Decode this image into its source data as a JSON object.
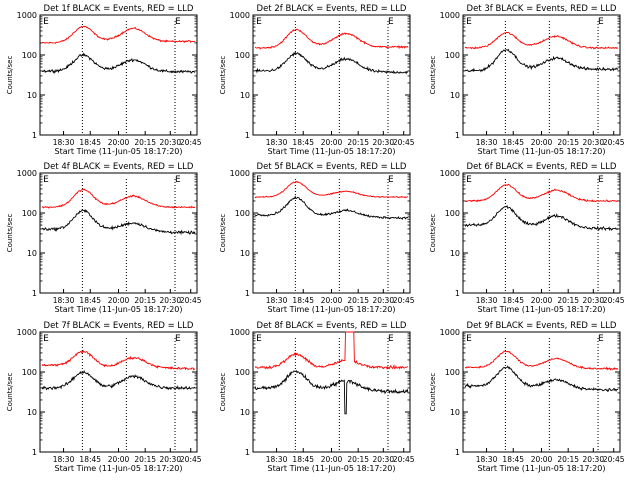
{
  "x_ticks": [
    "18:30",
    "18:45",
    "20:00",
    "20:15",
    "20:30",
    "20:45"
  ],
  "y_ticks": [
    "1",
    "10",
    "100",
    "1000"
  ],
  "ylabel": "Counts/sec",
  "xlabel": "Start Time (11-Jun-05 18:17:20)",
  "marker_label": "E",
  "colors": {
    "events": "#000000",
    "lld": "#ff0000",
    "axes": "#000000"
  },
  "chart_data": [
    {
      "type": "line",
      "title": "Det 1f BLACK = Events, RED = LLD",
      "xlabel": "Start Time (11-Jun-05 18:17:20)",
      "ylabel": "Counts/sec",
      "y_scale": "log",
      "ylim": [
        1,
        1000
      ],
      "x_tick_labels": [
        "18:30",
        "18:45",
        "20:00",
        "20:15",
        "20:30",
        "20:45"
      ],
      "events": {
        "base": 40,
        "peak1": 100,
        "trough": 48,
        "peak2": 80,
        "end": 38,
        "noise": 0.05
      },
      "lld": {
        "base": 200,
        "peak1": 500,
        "trough": 250,
        "peak2": 450,
        "end": 220,
        "noise": 0.03
      }
    },
    {
      "type": "line",
      "title": "Det 2f BLACK = Events, RED = LLD",
      "xlabel": "Start Time (11-Jun-05 18:17:20)",
      "ylabel": "Counts/sec",
      "y_scale": "log",
      "ylim": [
        1,
        1000
      ],
      "x_tick_labels": [
        "18:30",
        "18:45",
        "20:00",
        "20:15",
        "20:30",
        "20:45"
      ],
      "events": {
        "base": 40,
        "peak1": 110,
        "trough": 50,
        "peak2": 85,
        "end": 37,
        "noise": 0.05
      },
      "lld": {
        "base": 150,
        "peak1": 420,
        "trough": 200,
        "peak2": 340,
        "end": 160,
        "noise": 0.03
      }
    },
    {
      "type": "line",
      "title": "Det 3f BLACK = Events, RED = LLD",
      "xlabel": "Start Time (11-Jun-05 18:17:20)",
      "ylabel": "Counts/sec",
      "y_scale": "log",
      "ylim": [
        1,
        1000
      ],
      "x_tick_labels": [
        "18:30",
        "18:45",
        "20:00",
        "20:15",
        "20:30",
        "20:45"
      ],
      "events": {
        "base": 40,
        "peak1": 130,
        "trough": 50,
        "peak2": 80,
        "end": 45,
        "noise": 0.05
      },
      "lld": {
        "base": 150,
        "peak1": 360,
        "trough": 200,
        "peak2": 300,
        "end": 150,
        "noise": 0.03
      }
    },
    {
      "type": "line",
      "title": "Det 4f BLACK = Events, RED = LLD",
      "xlabel": "Start Time (11-Jun-05 18:17:20)",
      "ylabel": "Counts/sec",
      "y_scale": "log",
      "ylim": [
        1,
        1000
      ],
      "x_tick_labels": [
        "18:30",
        "18:45",
        "20:00",
        "20:15",
        "20:30",
        "20:45"
      ],
      "events": {
        "base": 40,
        "peak1": 120,
        "trough": 48,
        "peak2": 65,
        "end": 32,
        "noise": 0.05
      },
      "lld": {
        "base": 140,
        "peak1": 380,
        "trough": 180,
        "peak2": 270,
        "end": 140,
        "noise": 0.03
      }
    },
    {
      "type": "line",
      "title": "Det 5f BLACK = Events, RED = LLD",
      "xlabel": "Start Time (11-Jun-05 18:17:20)",
      "ylabel": "Counts/sec",
      "y_scale": "log",
      "ylim": [
        1,
        1000
      ],
      "x_tick_labels": [
        "18:30",
        "18:45",
        "20:00",
        "20:15",
        "20:30",
        "20:45"
      ],
      "events": {
        "base": 90,
        "peak1": 250,
        "trough": 100,
        "peak2": 130,
        "end": 75,
        "noise": 0.04
      },
      "lld": {
        "base": 250,
        "peak1": 600,
        "trough": 300,
        "peak2": 350,
        "end": 250,
        "noise": 0.02
      }
    },
    {
      "type": "line",
      "title": "Det 6f BLACK = Events, RED = LLD",
      "xlabel": "Start Time (11-Jun-05 18:17:20)",
      "ylabel": "Counts/sec",
      "y_scale": "log",
      "ylim": [
        1,
        1000
      ],
      "x_tick_labels": [
        "18:30",
        "18:45",
        "20:00",
        "20:15",
        "20:30",
        "20:45"
      ],
      "events": {
        "base": 50,
        "peak1": 150,
        "trough": 55,
        "peak2": 100,
        "end": 40,
        "noise": 0.05
      },
      "lld": {
        "base": 200,
        "peak1": 500,
        "trough": 250,
        "peak2": 380,
        "end": 200,
        "noise": 0.03
      }
    },
    {
      "type": "line",
      "title": "Det 7f BLACK = Events, RED = LLD",
      "xlabel": "Start Time (11-Jun-05 18:17:20)",
      "ylabel": "Counts/sec",
      "y_scale": "log",
      "ylim": [
        1,
        1000
      ],
      "x_tick_labels": [
        "18:30",
        "18:45",
        "20:00",
        "20:15",
        "20:30",
        "20:45"
      ],
      "events": {
        "base": 40,
        "peak1": 100,
        "trough": 40,
        "peak2": 80,
        "end": 40,
        "noise": 0.06
      },
      "lld": {
        "base": 150,
        "peak1": 350,
        "trough": 130,
        "peak2": 270,
        "end": 120,
        "noise": 0.04
      }
    },
    {
      "type": "line",
      "title": "Det 8f BLACK = Events, RED = LLD",
      "xlabel": "Start Time (11-Jun-05 18:17:20)",
      "ylabel": "Counts/sec",
      "y_scale": "log",
      "ylim": [
        1,
        1000
      ],
      "x_tick_labels": [
        "18:30",
        "18:45",
        "20:00",
        "20:15",
        "20:30",
        "20:45"
      ],
      "events": {
        "base": 40,
        "peak1": 110,
        "trough": 45,
        "peak2": 70,
        "end": 32,
        "noise": 0.07
      },
      "lld": {
        "base": 130,
        "peak1": 280,
        "trough": 120,
        "peak2": 200,
        "end": 130,
        "noise": 0.05
      },
      "glitch": {
        "black_low": 9,
        "red_high": 1000
      }
    },
    {
      "type": "line",
      "title": "Det 9f BLACK = Events, RED = LLD",
      "xlabel": "Start Time (11-Jun-05 18:17:20)",
      "ylabel": "Counts/sec",
      "y_scale": "log",
      "ylim": [
        1,
        1000
      ],
      "x_tick_labels": [
        "18:30",
        "18:45",
        "20:00",
        "20:15",
        "20:30",
        "20:45"
      ],
      "events": {
        "base": 45,
        "peak1": 140,
        "trough": 50,
        "peak2": 75,
        "end": 35,
        "noise": 0.05
      },
      "lld": {
        "base": 130,
        "peak1": 330,
        "trough": 150,
        "peak2": 230,
        "end": 120,
        "noise": 0.03
      }
    }
  ]
}
